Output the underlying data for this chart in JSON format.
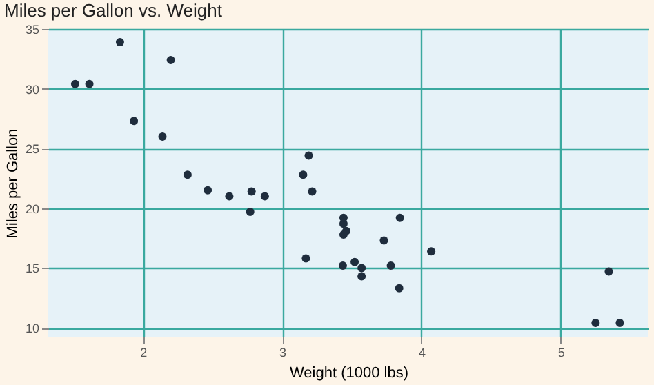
{
  "chart_data": {
    "type": "scatter",
    "title": "Miles per Gallon vs. Weight",
    "xlabel": "Weight (1000 lbs)",
    "ylabel": "Miles per Gallon",
    "x": [
      2.62,
      2.875,
      2.32,
      3.215,
      3.44,
      3.46,
      3.57,
      3.19,
      3.15,
      3.44,
      3.44,
      4.07,
      3.73,
      3.78,
      5.25,
      5.424,
      5.345,
      2.2,
      1.615,
      1.835,
      2.465,
      3.52,
      3.435,
      3.84,
      3.845,
      1.935,
      2.14,
      1.513,
      3.17,
      2.77,
      3.57,
      2.78
    ],
    "series": [
      {
        "color": "#1f2d3d",
        "values": [
          21.0,
          21.0,
          22.8,
          21.4,
          18.7,
          18.1,
          14.3,
          24.4,
          22.8,
          19.2,
          17.8,
          16.4,
          17.3,
          15.2,
          10.4,
          10.4,
          14.7,
          32.4,
          30.4,
          33.9,
          21.5,
          15.5,
          15.2,
          13.3,
          19.2,
          27.3,
          26.0,
          30.4,
          15.8,
          19.7,
          15.0,
          21.4
        ]
      }
    ],
    "xlim": [
      1.32,
      5.63
    ],
    "xticks": [
      2,
      3,
      4,
      5
    ],
    "ylim": [
      9.25,
      35
    ],
    "yticks": [
      10,
      15,
      20,
      25,
      30,
      35
    ],
    "grid": true,
    "marker": "circle",
    "legend": false
  }
}
